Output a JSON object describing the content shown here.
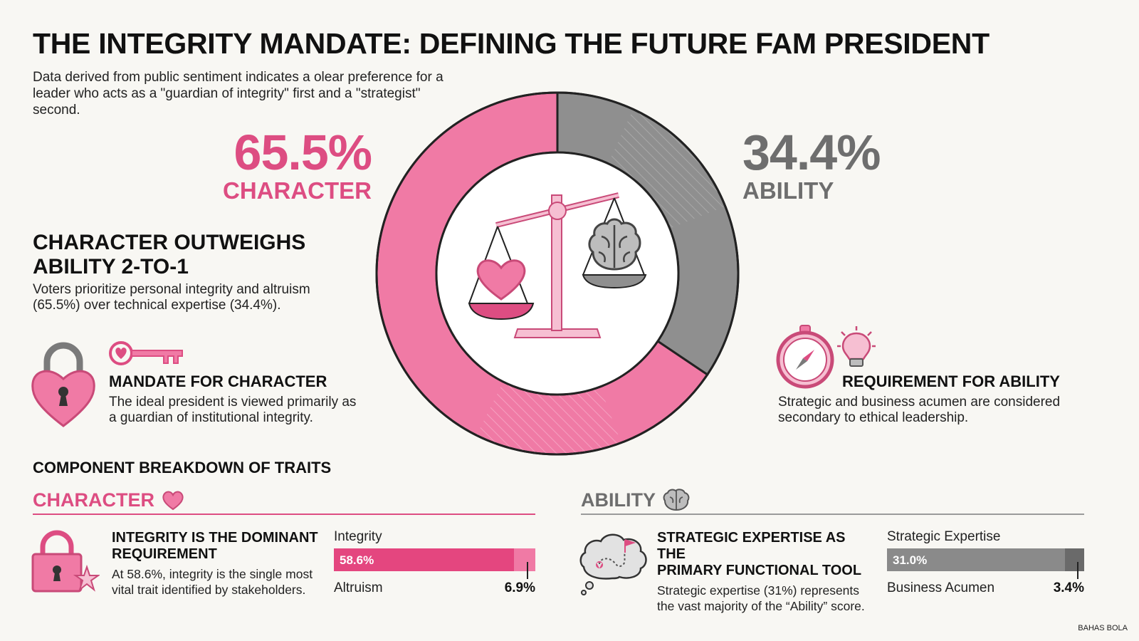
{
  "title": "THE INTEGRITY MANDATE: DEFINING THE FUTURE FAM PRESIDENT",
  "intro": "Data derived from public sentiment indicates a olear preference for a leader who acts as a \"guardian of integrity\" first and a \"strategist\" second.",
  "character_stat": {
    "pct": "65.5%",
    "label": "CHARACTER"
  },
  "ability_stat": {
    "pct": "34.4%",
    "label": "ABILITY"
  },
  "outweighs": {
    "heading_line1": "CHARACTER OUTWEIGHS",
    "heading_line2": "ABILITY 2-TO-1",
    "text": "Voters prioritize personal integrity and altruism (65.5%) over technical expertise (34.4%)."
  },
  "mandate": {
    "heading": "MANDATE FOR CHARACTER",
    "text": "The ideal president is viewed primarily as a guardian of institutional integrity."
  },
  "requirement": {
    "heading": "REQUIREMENT FOR ABILITY",
    "text": "Strategic and business acumen are considered secondary to ethical leadership."
  },
  "breakdown": {
    "heading": "COMPONENT BREAKDOWN OF TRAITS",
    "character_label": "CHARACTER",
    "ability_label": "ABILITY",
    "character_card": {
      "heading_line1": "INTEGRITY IS THE DOMINANT",
      "heading_line2": "REQUIREMENT",
      "text": "At 58.6%, integrity is the single most vital trait identified by stakeholders."
    },
    "ability_card": {
      "heading_line1": "STRATEGIC EXPERTISE AS THE",
      "heading_line2": "PRIMARY FUNCTIONAL TOOL",
      "text": "Strategic expertise (31%) represents the vast majority of the “Ability” score."
    }
  },
  "colors": {
    "pink": "#f07aa5",
    "pink_dark": "#dd4d82",
    "pink_light": "#f6bfd2",
    "grey": "#8f8f8f",
    "grey_dark": "#7a7a7a",
    "grey_light": "#cfcfcf"
  },
  "icons": [
    "heart-lock-icon",
    "key-icon",
    "scales-icon",
    "heart-icon",
    "brain-icon",
    "compass-icon",
    "lightbulb-icon",
    "lock-star-icon",
    "thought-cloud-map-icon"
  ],
  "chart_data": [
    {
      "type": "pie",
      "subtype": "donut",
      "categories": [
        "CHARACTER",
        "ABILITY"
      ],
      "values": [
        65.5,
        34.4
      ]
    },
    {
      "type": "bar",
      "subtype": "stacked-horizontal",
      "categories": [
        "Integrity",
        "Altruism"
      ],
      "values": [
        58.6,
        6.9
      ],
      "labels": [
        "58.6%",
        "6.9%"
      ],
      "max": 65.5
    },
    {
      "type": "bar",
      "subtype": "stacked-horizontal",
      "categories": [
        "Strategic Expertise",
        "Business Acumen"
      ],
      "values": [
        31.0,
        3.4
      ],
      "labels": [
        "31.0%",
        "3.4%"
      ],
      "max": 34.4
    }
  ],
  "footer": "BAHAS BOLA"
}
